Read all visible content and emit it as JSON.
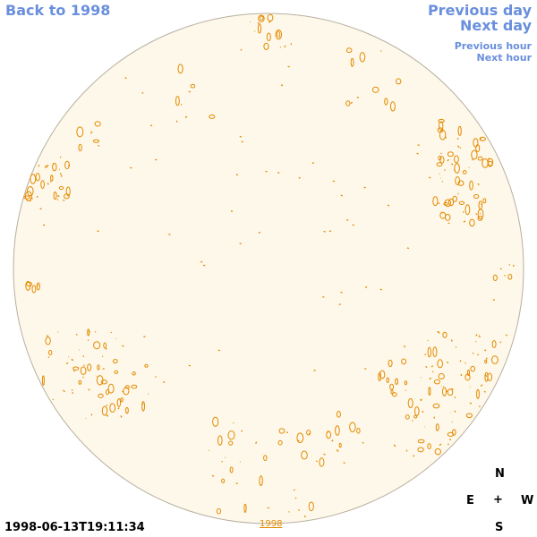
{
  "nav": {
    "back": "Back to 1998",
    "previous_day": "Previous day",
    "next_day": "Next day",
    "previous_hour": "Previous hour",
    "next_hour": "Next hour"
  },
  "timestamp": "1998-06-13T19:11:34",
  "year_link": "1998",
  "compass": {
    "n": "N",
    "e": "E",
    "center": "+",
    "w": "W",
    "s": "S"
  },
  "colors": {
    "disk_fill": "#fdf8ea",
    "disk_edge": "#b8b0a0",
    "contour": "#e58a00",
    "nav_link": "#6a8fdc"
  }
}
